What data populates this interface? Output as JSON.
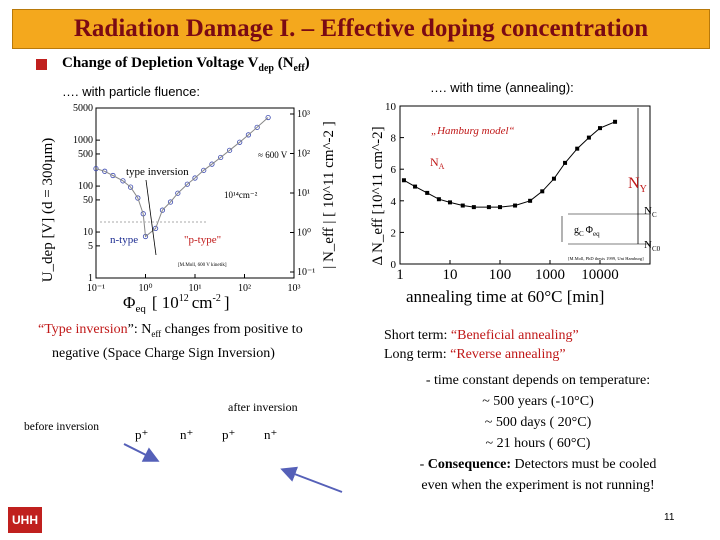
{
  "title": "Radiation Damage I. – Effective doping concentration",
  "heading": {
    "main": "Change of Depletion Voltage V",
    "sub1": "dep",
    "mid": " (N",
    "sub2": "eff",
    "end": ")"
  },
  "left_caption": "…. with particle fluence:",
  "right_caption": "…. with time (annealing):",
  "left_chart": {
    "y_label": "U_dep [V] (d = 300µm)",
    "y2_label": "| N_eff | [ 10^11 cm^-2 ]",
    "x_label_symbol": "Φ",
    "x_label_sub": "eq",
    "x_label_units": "[ 10",
    "x_label_exp": "12",
    "x_label_tail": "cm",
    "x_label_tail_exp": "-2",
    "x_label_close": "]",
    "y_ticks": [
      "5000",
      "1000",
      "500",
      "100",
      "50",
      "10",
      "5",
      "1"
    ],
    "y2_ticks": [
      "10³",
      "10²",
      "10¹",
      "10⁰",
      "10⁻¹"
    ],
    "x_ticks": [
      "10⁻¹",
      "10⁰",
      "10¹",
      "10²",
      "10³"
    ],
    "annotations": {
      "type_inversion": "type inversion",
      "n_type": "n-type",
      "p_type": "\"p-type\"",
      "v600": "≈ 600 V",
      "fluence": "10¹⁴cm⁻²",
      "credit": "[M.Moll, 600 V kinetik]"
    },
    "chart_data": {
      "type": "scatter",
      "title": "",
      "xlabel": "Φeq [10^12 cm^-2]",
      "ylabel": "Udep [V] (d = 300µm)",
      "x_scale": "log",
      "y_scale": "log",
      "xlim": [
        0.1,
        1000
      ],
      "ylim": [
        1,
        5000
      ],
      "series": [
        {
          "name": "measured",
          "x": [
            0.1,
            0.15,
            0.22,
            0.35,
            0.5,
            0.7,
            0.9,
            1.0,
            1.6,
            2.2,
            3.2,
            4.5,
            7,
            10,
            15,
            22,
            33,
            50,
            80,
            120,
            180,
            300
          ],
          "y": [
            240,
            210,
            170,
            130,
            95,
            55,
            25,
            8,
            12,
            30,
            45,
            70,
            110,
            150,
            220,
            300,
            420,
            600,
            900,
            1300,
            1900,
            3100
          ]
        }
      ]
    }
  },
  "right_chart": {
    "y_label": "Δ N_eff [10^11 cm^-2]",
    "x_label": "annealing time at 60°C [min]",
    "y_ticks": [
      "10",
      "8",
      "6",
      "4",
      "2",
      "0"
    ],
    "x_ticks": [
      "1",
      "10",
      "100",
      "1000",
      "10000"
    ],
    "annotations": {
      "model": "„Hamburg model“",
      "NA": "N",
      "NA_sub": "A",
      "NY": "N",
      "NY_sub": "Y",
      "NC": "N",
      "NC_sub": "C",
      "NC0": "N",
      "NC0_sub": "C0",
      "gc": "g",
      "gc_sub": "C",
      "gc_phi": "Φ",
      "gc_phi_sub": "eq",
      "credit": "[M.Moll, PhD thesis 1999, Uni Hamburg]"
    },
    "chart_data": {
      "type": "scatter",
      "xlabel": "annealing time at 60°C [min]",
      "ylabel": "Δ Neff [10^11 cm^-2]",
      "x_scale": "log",
      "xlim": [
        1,
        100000
      ],
      "ylim": [
        0,
        10
      ],
      "series": [
        {
          "name": "data",
          "x": [
            1.2,
            2,
            3.5,
            6,
            10,
            18,
            30,
            60,
            100,
            200,
            400,
            700,
            1200,
            2000,
            3500,
            6000,
            10000,
            20000
          ],
          "y": [
            5.3,
            4.9,
            4.5,
            4.1,
            3.9,
            3.7,
            3.6,
            3.6,
            3.6,
            3.7,
            4.0,
            4.6,
            5.4,
            6.4,
            7.3,
            8.0,
            8.6,
            9.0
          ]
        }
      ]
    }
  },
  "left_text": {
    "line1_quote_open": "“",
    "line1_term": "Type inversion",
    "line1_rest": "”: N",
    "line1_sub": "eff",
    "line1_end": " changes from positive to",
    "line2": "negative (Space Charge Sign Inversion)"
  },
  "right_text": {
    "short_label": "Short term: ",
    "short_term": "“Beneficial annealing”",
    "long_label": "Long term: ",
    "long_term": "“Reverse annealing”",
    "line3": "- time constant depends on temperature:",
    "line4": "~ 500 years (-10°C)",
    "line5": "~ 500 days  ( 20°C)",
    "line6": "~  21 hours  ( 60°C)",
    "line7_prefix": "- ",
    "line7_bold": "Consequence:",
    "line7_rest": " Detectors must be cooled",
    "line8": "even when the experiment is not running!"
  },
  "diagram": {
    "after_inversion": "after inversion",
    "before_inversion": "before inversion",
    "labels": [
      "p⁺",
      "n⁺",
      "p⁺",
      "n⁺"
    ]
  },
  "logo": "UHH",
  "page_number": "11",
  "colors": {
    "title_bg": "#f4a81d",
    "title_text": "#7a0a14",
    "accent": "#c01818",
    "arrow": "#5560b8",
    "logo_bg": "#c0201e"
  }
}
